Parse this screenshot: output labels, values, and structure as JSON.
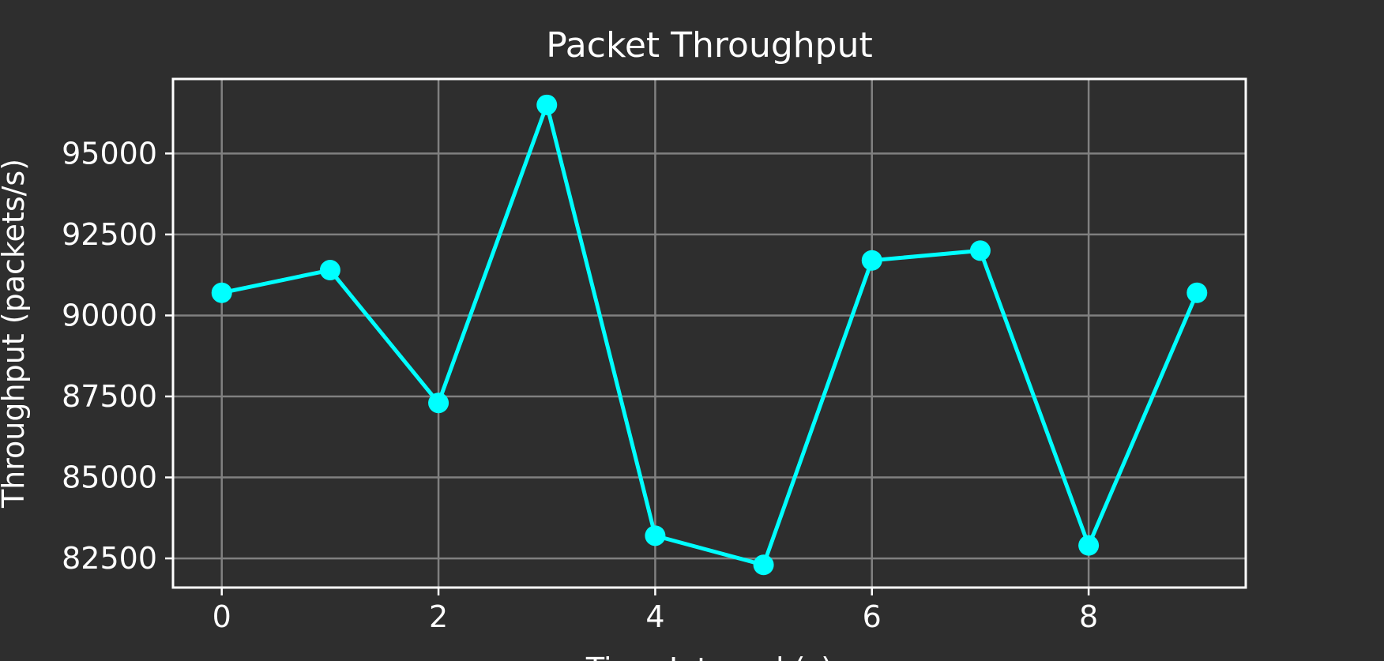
{
  "chart_data": {
    "type": "line",
    "title": "Packet Throughput",
    "xlabel": "Time Interval (s)",
    "ylabel": "Throughput (packets/s)",
    "x": [
      0,
      1,
      2,
      3,
      4,
      5,
      6,
      7,
      8,
      9
    ],
    "series": [
      {
        "values": [
          90700,
          91400,
          87300,
          96500,
          83200,
          82300,
          91700,
          92000,
          82900,
          90700
        ],
        "color": "#00ffff"
      }
    ],
    "xlim": [
      -0.45,
      9.45
    ],
    "ylim": [
      81600,
      97300
    ],
    "xticks": [
      0,
      2,
      4,
      6,
      8
    ],
    "yticks": [
      82500,
      85000,
      87500,
      90000,
      92500,
      95000
    ],
    "xtick_labels": [
      "0",
      "2",
      "4",
      "6",
      "8"
    ],
    "ytick_labels": [
      "82500",
      "85000",
      "87500",
      "90000",
      "92500",
      "95000"
    ],
    "grid": true,
    "background_color": "#2e2e2e",
    "grid_color": "#808080",
    "text_color": "#ffffff"
  }
}
